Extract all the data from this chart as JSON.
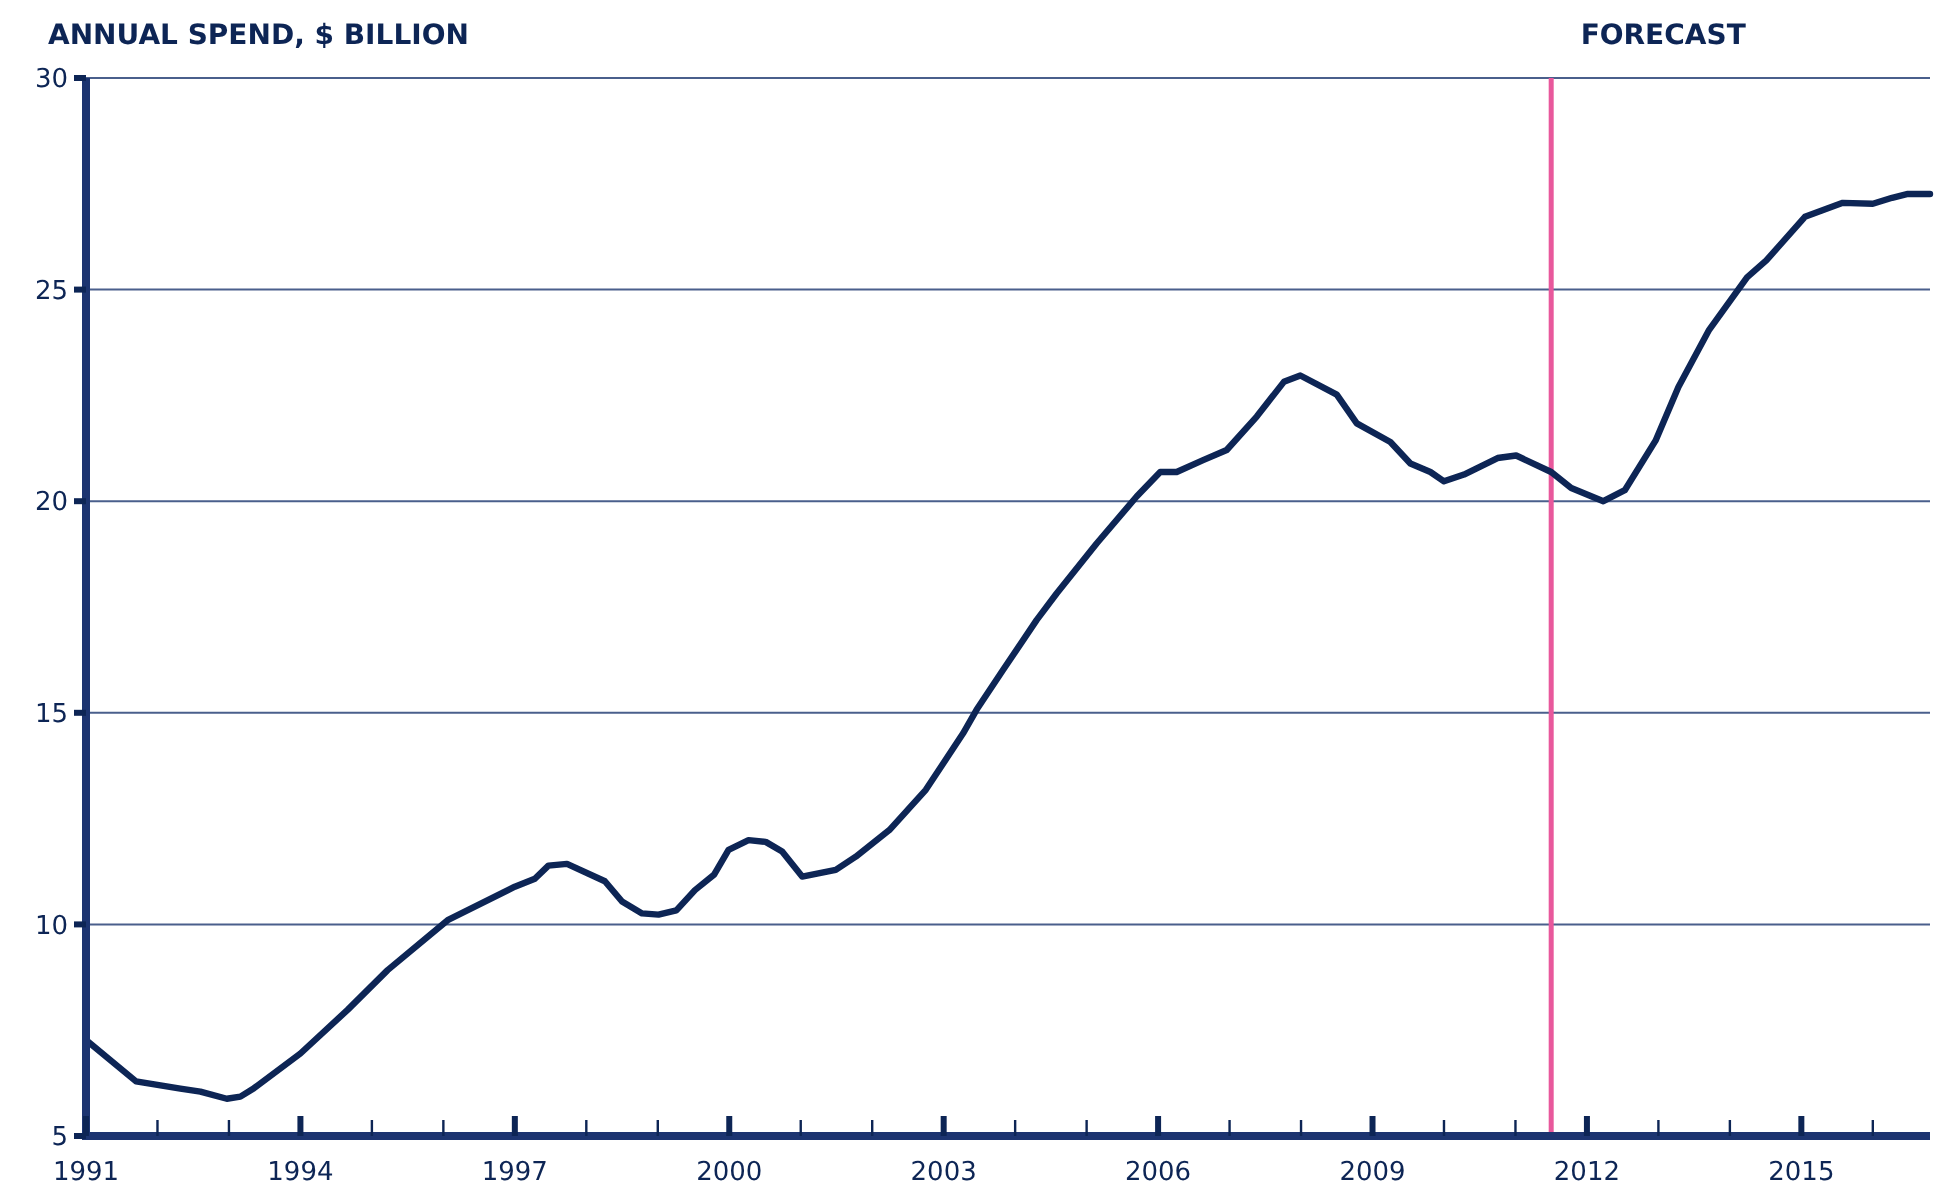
{
  "chart_data": {
    "type": "line",
    "ylabel": "ANNUAL SPEND, $ BILLION",
    "x": [
      1991.0,
      1991.7,
      1992.32,
      1992.6,
      1992.97,
      1993.16,
      1993.35,
      1994.0,
      1994.66,
      1995.22,
      1996.06,
      1997.0,
      1997.28,
      1997.47,
      1997.73,
      1998.26,
      1998.5,
      1998.78,
      1999.01,
      1999.26,
      1999.52,
      1999.79,
      1999.99,
      2000.27,
      2000.51,
      2000.74,
      2001.02,
      2001.49,
      2001.77,
      2002.24,
      2002.75,
      2003.27,
      2003.46,
      2003.83,
      2004.3,
      2004.58,
      2005.14,
      2005.7,
      2006.03,
      2006.26,
      2006.63,
      2006.96,
      2007.38,
      2007.76,
      2007.99,
      2008.5,
      2008.78,
      2009.25,
      2009.53,
      2009.81,
      2010.0,
      2010.28,
      2010.75,
      2011.01,
      2011.5,
      2011.78,
      2012.23,
      2012.53,
      2012.96,
      2013.28,
      2013.71,
      2014.24,
      2014.51,
      2015.05,
      2015.58,
      2016.0,
      2016.27,
      2016.49,
      2016.8
    ],
    "series": [
      {
        "color": "#0d2555",
        "values": [
          7.27,
          6.29,
          6.12,
          6.05,
          5.88,
          5.93,
          6.13,
          6.95,
          7.98,
          8.92,
          10.1,
          10.89,
          11.08,
          11.39,
          11.43,
          11.02,
          10.54,
          10.26,
          10.23,
          10.33,
          10.81,
          11.18,
          11.76,
          11.99,
          11.95,
          11.72,
          11.13,
          11.29,
          11.6,
          12.23,
          13.18,
          14.51,
          15.07,
          16.01,
          17.19,
          17.82,
          19.0,
          20.11,
          20.69,
          20.69,
          20.97,
          21.21,
          22.0,
          22.82,
          22.97,
          22.52,
          21.84,
          21.4,
          20.89,
          20.69,
          20.47,
          20.63,
          21.02,
          21.08,
          20.69,
          20.31,
          20.0,
          20.26,
          21.43,
          22.7,
          24.05,
          25.29,
          25.69,
          26.72,
          27.05,
          27.03,
          27.17,
          27.26,
          27.26
        ]
      }
    ],
    "xlim": [
      1991,
      2016.8
    ],
    "ylim": [
      5,
      30
    ],
    "xticks": [
      1991,
      {
        "value": 1992,
        "label": null
      },
      {
        "value": 1993,
        "label": null
      },
      1994,
      {
        "value": 1995,
        "label": null
      },
      {
        "value": 1996,
        "label": null
      },
      1997,
      {
        "value": 1998,
        "label": null
      },
      {
        "value": 1999,
        "label": null
      },
      2000,
      {
        "value": 2001,
        "label": null
      },
      {
        "value": 2002,
        "label": null
      },
      2003,
      {
        "value": 2004,
        "label": null
      },
      {
        "value": 2005,
        "label": null
      },
      2006,
      {
        "value": 2007,
        "label": null
      },
      {
        "value": 2008,
        "label": null
      },
      2009,
      {
        "value": 2010,
        "label": null
      },
      {
        "value": 2011,
        "label": null
      },
      2012,
      {
        "value": 2013,
        "label": null
      },
      {
        "value": 2014,
        "label": null
      },
      2015,
      {
        "value": 2016,
        "label": null
      }
    ],
    "yticks": [
      5,
      10,
      15,
      20,
      25,
      30
    ],
    "grid": "y",
    "marker": "none",
    "line_style": "solid",
    "ref_lines": [
      {
        "axis": "x",
        "value": 2011.5,
        "label": "FORECAST",
        "color": "#e8589c"
      }
    ]
  }
}
